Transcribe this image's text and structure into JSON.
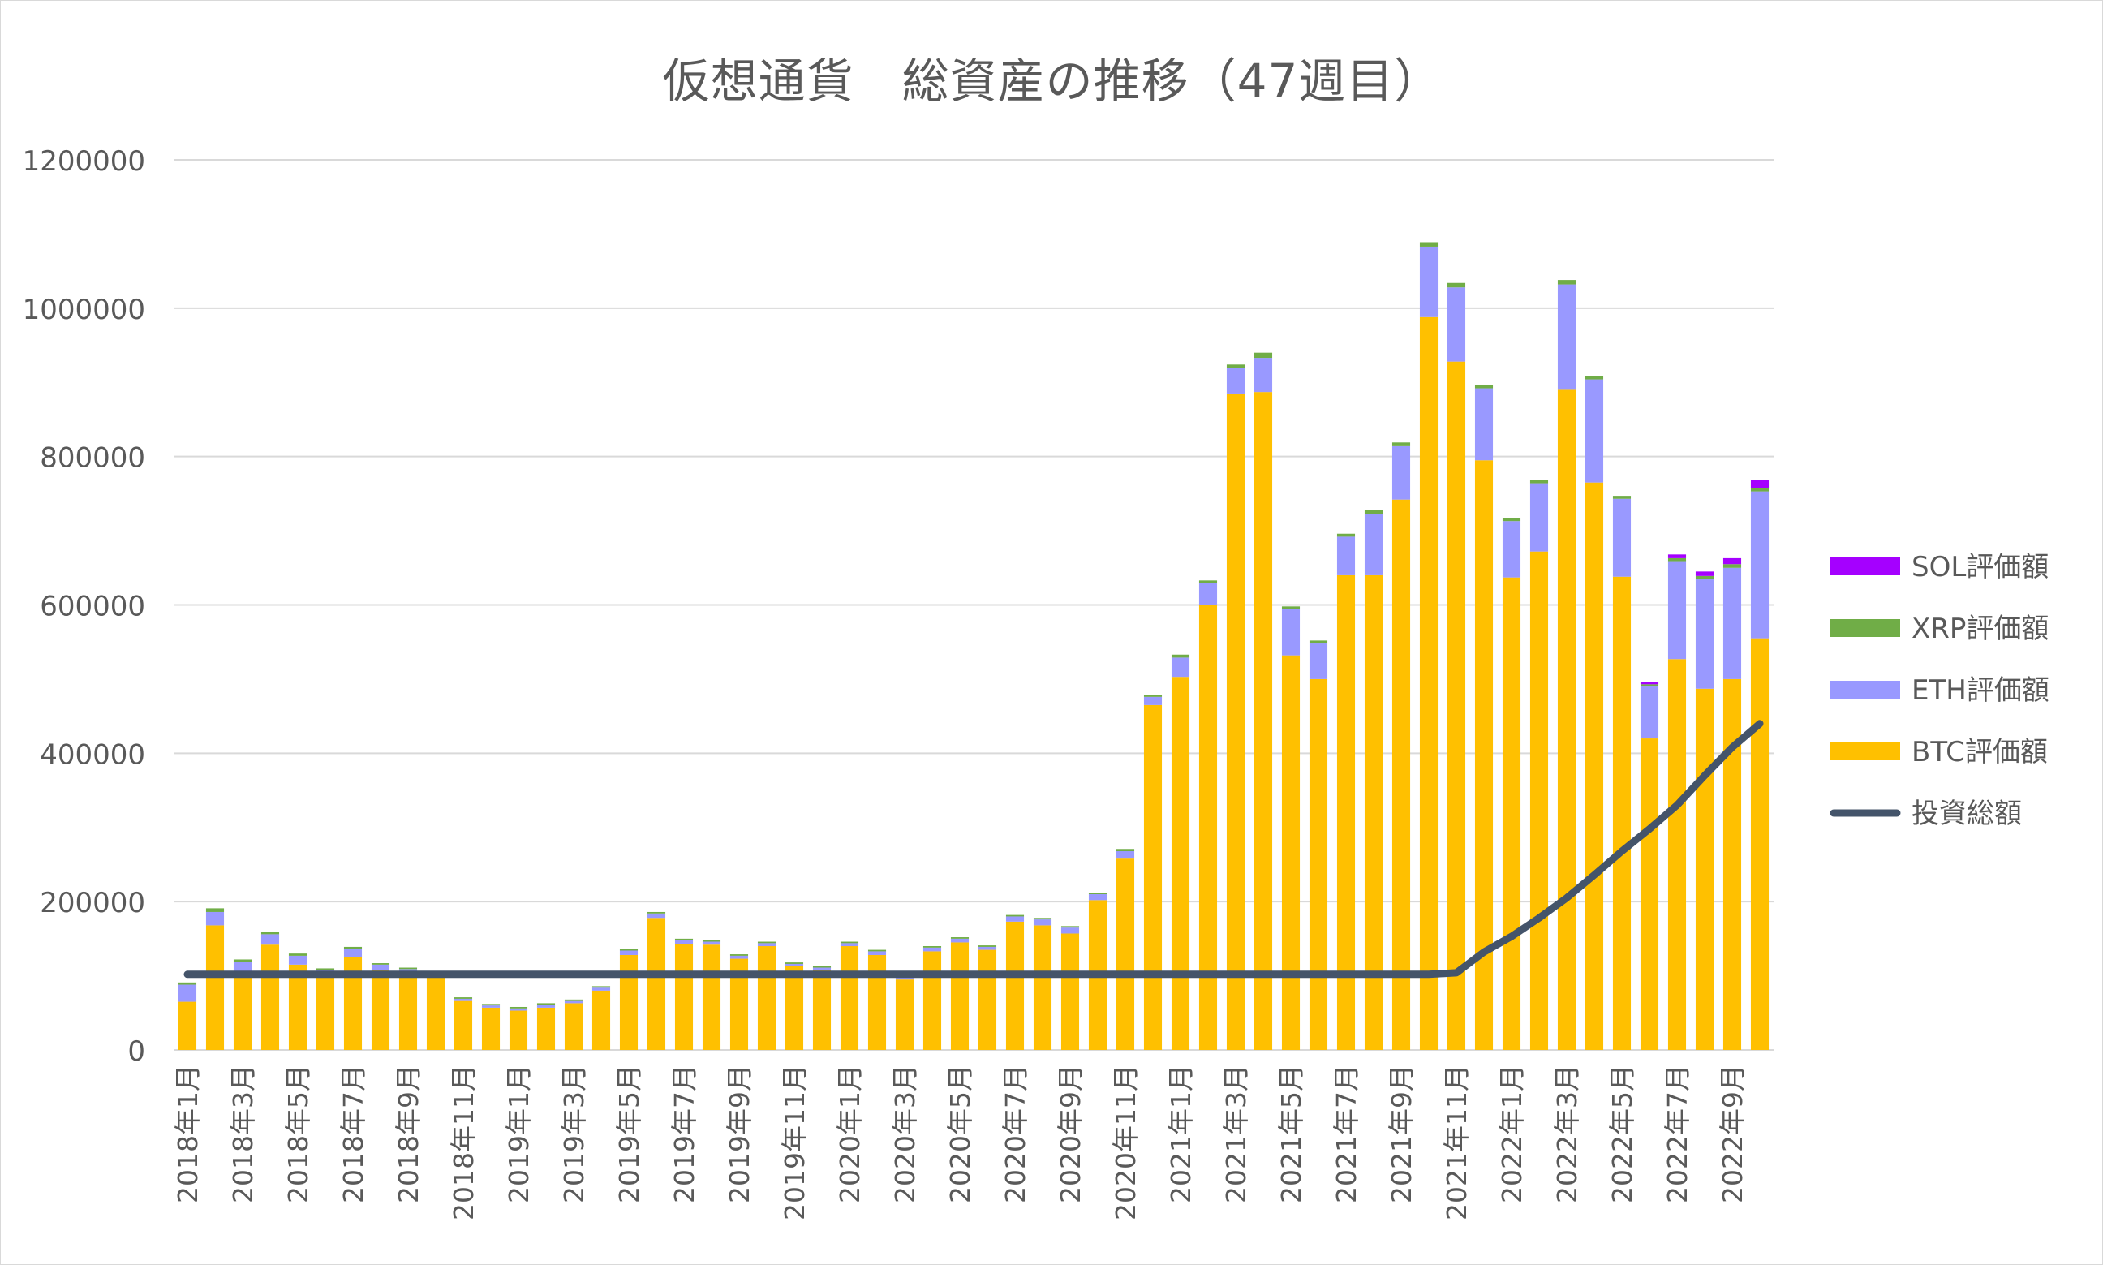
{
  "chart_data": {
    "type": "bar",
    "stacked": true,
    "title": "仮想通貨　総資産の推移（47週目）",
    "xlabel": "",
    "ylabel": "",
    "ylim": [
      0,
      1200000
    ],
    "yticks": [
      0,
      200000,
      400000,
      600000,
      800000,
      1000000,
      1200000
    ],
    "grid": true,
    "legend_position": "right",
    "categories": [
      "2018年1月",
      "2018年2月",
      "2018年3月",
      "2018年4月",
      "2018年5月",
      "2018年6月",
      "2018年7月",
      "2018年8月",
      "2018年9月",
      "2018年10月",
      "2018年11月",
      "2018年12月",
      "2019年1月",
      "2019年2月",
      "2019年3月",
      "2019年4月",
      "2019年5月",
      "2019年6月",
      "2019年7月",
      "2019年8月",
      "2019年9月",
      "2019年10月",
      "2019年11月",
      "2019年12月",
      "2020年1月",
      "2020年2月",
      "2020年3月",
      "2020年4月",
      "2020年5月",
      "2020年6月",
      "2020年7月",
      "2020年8月",
      "2020年9月",
      "2020年10月",
      "2020年11月",
      "2020年12月",
      "2021年1月",
      "2021年2月",
      "2021年3月",
      "2021年4月",
      "2021年5月",
      "2021年6月",
      "2021年7月",
      "2021年8月",
      "2021年9月",
      "2021年10月",
      "2021年11月",
      "2021年12月",
      "2022年1月",
      "2022年2月",
      "2022年3月",
      "2022年4月",
      "2022年5月",
      "2022年6月",
      "2022年7月",
      "2022年8月",
      "2022年9月",
      "2022年10月"
    ],
    "shown_tick_labels": [
      "2018年1月",
      "2018年3月",
      "2018年5月",
      "2018年7月",
      "2018年9月",
      "2018年11月",
      "2019年1月",
      "2019年3月",
      "2019年5月",
      "2019年7月",
      "2019年9月",
      "2019年11月",
      "2020年1月",
      "2020年3月",
      "2020年5月",
      "2020年7月",
      "2020年9月",
      "2020年11月",
      "2021年1月",
      "2021年3月",
      "2021年5月",
      "2021年7月",
      "2021年9月",
      "2021年11月",
      "2022年1月",
      "2022年3月",
      "2022年5月",
      "2022年7月",
      "2022年9月"
    ],
    "series": [
      {
        "name": "BTC評価額",
        "kind": "bar",
        "color": "#ffc000",
        "values": [
          65000,
          168000,
          102000,
          142000,
          115000,
          104000,
          125000,
          108000,
          104000,
          100000,
          66000,
          57000,
          53000,
          57000,
          63000,
          80000,
          128000,
          178000,
          143000,
          142000,
          123000,
          140000,
          113000,
          108000,
          140000,
          128000,
          95000,
          133000,
          145000,
          135000,
          173000,
          168000,
          157000,
          202000,
          258000,
          465000,
          503000,
          600000,
          885000,
          887000,
          532000,
          500000,
          640000,
          640000,
          742000,
          988000,
          928000,
          795000,
          637000,
          672000,
          890000,
          765000,
          638000,
          420000,
          527000,
          487000,
          500000,
          555000
        ]
      },
      {
        "name": "ETH評価額",
        "kind": "bar",
        "color": "#9999ff",
        "values": [
          23000,
          18000,
          17000,
          14000,
          12000,
          4000,
          11000,
          7000,
          5000,
          2000,
          3000,
          3000,
          3000,
          4000,
          3000,
          4000,
          6000,
          6000,
          5000,
          4000,
          4000,
          4000,
          3000,
          3000,
          4000,
          5000,
          3000,
          5000,
          5000,
          4000,
          7000,
          8000,
          8000,
          8000,
          10000,
          11000,
          26000,
          29000,
          34000,
          46000,
          62000,
          48000,
          52000,
          83000,
          72000,
          95000,
          100000,
          97000,
          76000,
          92000,
          142000,
          139000,
          105000,
          70000,
          132000,
          148000,
          150000,
          198000
        ]
      },
      {
        "name": "XRP評価額",
        "kind": "bar",
        "color": "#70ad47",
        "values": [
          3000,
          5000,
          3000,
          3000,
          3000,
          2000,
          3000,
          2000,
          2000,
          1000,
          2000,
          2000,
          2000,
          2000,
          2000,
          2000,
          2000,
          2000,
          2000,
          2000,
          2000,
          2000,
          2000,
          2000,
          2000,
          2000,
          1000,
          2000,
          2000,
          2000,
          2000,
          2000,
          2000,
          2000,
          3000,
          3000,
          4000,
          4000,
          5000,
          7000,
          4000,
          4000,
          4000,
          5000,
          5000,
          6000,
          6000,
          5000,
          4000,
          5000,
          6000,
          5000,
          4000,
          3000,
          4000,
          4000,
          5000,
          5000
        ]
      },
      {
        "name": "SOL評価額",
        "kind": "bar",
        "color": "#a500ff",
        "values": [
          0,
          0,
          0,
          0,
          0,
          0,
          0,
          0,
          0,
          0,
          0,
          0,
          0,
          0,
          0,
          0,
          0,
          0,
          0,
          0,
          0,
          0,
          0,
          0,
          0,
          0,
          0,
          0,
          0,
          0,
          0,
          0,
          0,
          0,
          0,
          0,
          0,
          0,
          0,
          0,
          0,
          0,
          0,
          0,
          0,
          0,
          0,
          0,
          0,
          0,
          0,
          0,
          0,
          3000,
          5000,
          6000,
          8000,
          10000
        ]
      },
      {
        "name": "投資総額",
        "kind": "line",
        "color": "#44546a",
        "values": [
          102000,
          102000,
          102000,
          102000,
          102000,
          102000,
          102000,
          102000,
          102000,
          102000,
          102000,
          102000,
          102000,
          102000,
          102000,
          102000,
          102000,
          102000,
          102000,
          102000,
          102000,
          102000,
          102000,
          102000,
          102000,
          102000,
          102000,
          102000,
          102000,
          102000,
          102000,
          102000,
          102000,
          102000,
          102000,
          102000,
          102000,
          102000,
          102000,
          102000,
          102000,
          102000,
          102000,
          102000,
          102000,
          102000,
          104000,
          132000,
          153000,
          178000,
          205000,
          236000,
          268000,
          298000,
          330000,
          370000,
          408000,
          440000
        ]
      }
    ],
    "legend_order": [
      "SOL評価額",
      "XRP評価額",
      "ETH評価額",
      "BTC評価額",
      "投資総額"
    ]
  }
}
